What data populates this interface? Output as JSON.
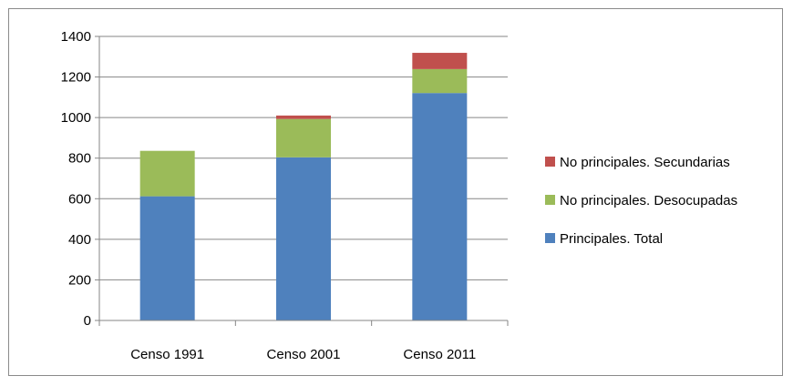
{
  "chart_data": {
    "type": "bar",
    "stacked": true,
    "categories": [
      "Censo 1991",
      "Censo 2001",
      "Censo 2011"
    ],
    "series": [
      {
        "name": "Principales. Total",
        "values": [
          612,
          804,
          1121
        ],
        "color": "#4f81bd"
      },
      {
        "name": "No principales. Desocupadas",
        "values": [
          224,
          189,
          118
        ],
        "color": "#9bbb59"
      },
      {
        "name": "No principales. Secundarias",
        "values": [
          0,
          17,
          80
        ],
        "color": "#c0504d"
      }
    ],
    "ylim": [
      0,
      1400
    ],
    "yticks": [
      0,
      200,
      400,
      600,
      800,
      1000,
      1200,
      1400
    ],
    "grid": true,
    "legend_position": "right",
    "legend_order": [
      "No principales. Secundarias",
      "No principales. Desocupadas",
      "Principales. Total"
    ]
  }
}
